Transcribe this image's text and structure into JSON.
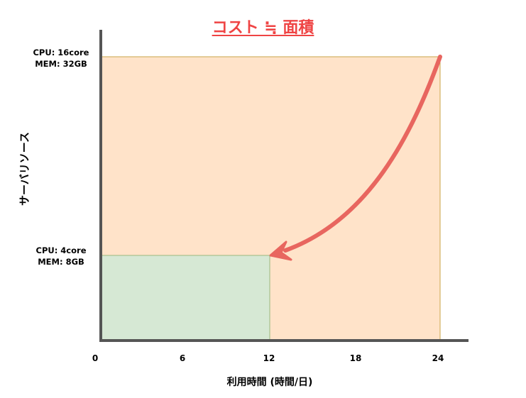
{
  "title": "コスト ≒ 面積",
  "y_axis_label": "サーバリソース",
  "x_axis_label": "利用時間 (時間/日)",
  "x_ticks": [
    "0",
    "6",
    "12",
    "18",
    "24"
  ],
  "high_resource": {
    "cpu": "CPU: 16core",
    "mem": "MEM: 32GB"
  },
  "low_resource": {
    "cpu": "CPU: 4core",
    "mem": "MEM: 8GB"
  },
  "colors": {
    "large_area": "#ffe3c9",
    "small_area": "#d6e8d4",
    "arrow": "#e8665f",
    "title": "#ef4444"
  },
  "areas": {
    "large": {
      "hours": 24,
      "resource": "high"
    },
    "small": {
      "hours": 12,
      "resource": "low"
    }
  }
}
